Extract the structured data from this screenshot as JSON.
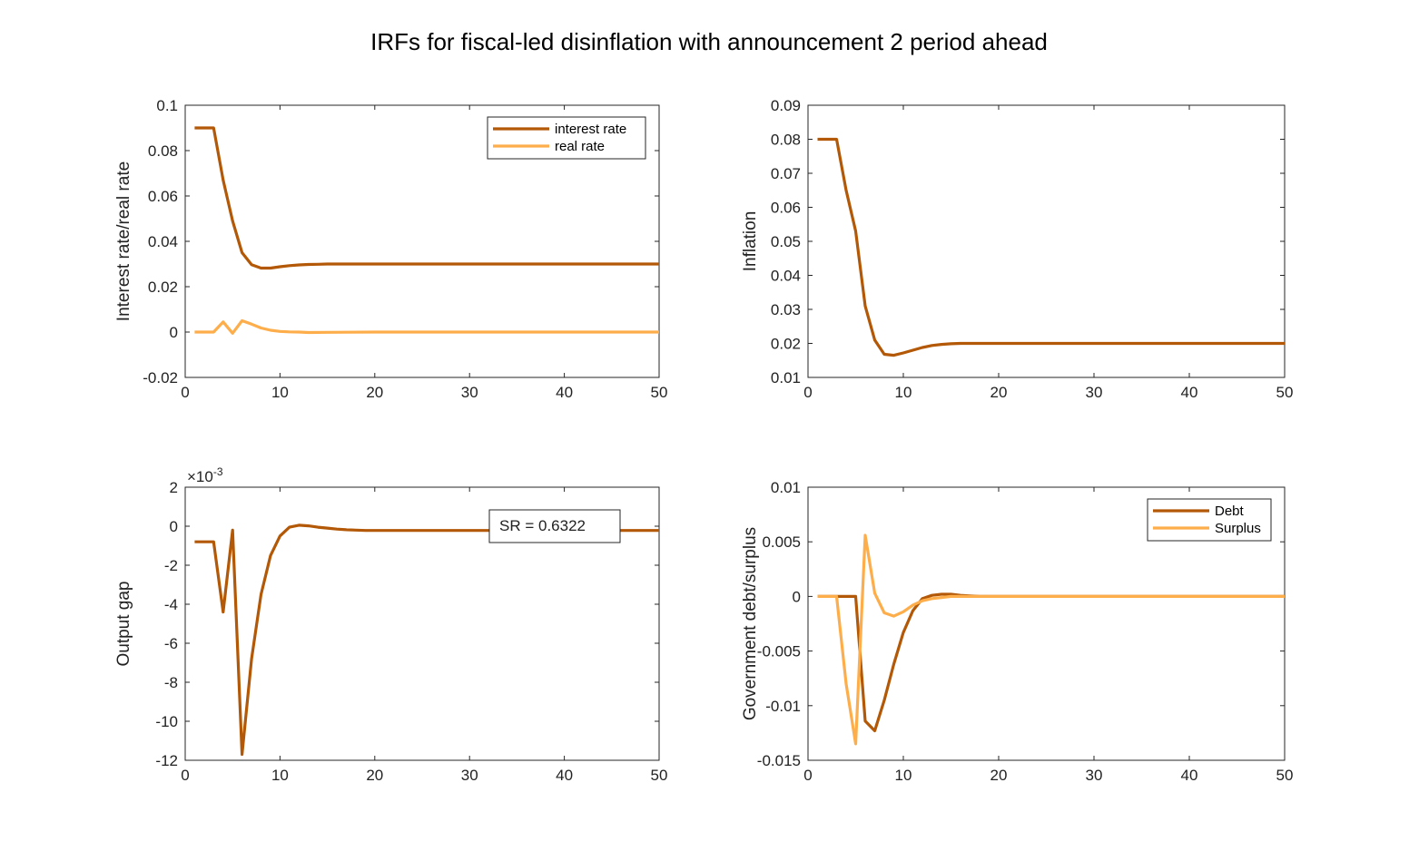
{
  "figure": {
    "title": "IRFs for fiscal-led disinflation with announcement 2 period ahead",
    "colors": {
      "dark": "#B35806",
      "light": "#FDAE4B"
    }
  },
  "chart_data": [
    {
      "type": "line",
      "ylabel": "Interest rate/real rate",
      "xlim": [
        0,
        50
      ],
      "ylim": [
        -0.02,
        0.1
      ],
      "xticks": [
        "0",
        "10",
        "20",
        "30",
        "40",
        "50"
      ],
      "yticks": [
        "-0.02",
        "0",
        "0.02",
        "0.04",
        "0.06",
        "0.08",
        "0.1"
      ],
      "legend": "top-right",
      "series": [
        {
          "name": "interest rate",
          "color": "dark",
          "x": [
            1,
            2,
            3,
            4,
            5,
            6,
            7,
            8,
            9,
            10,
            11,
            12,
            13,
            14,
            15,
            20,
            30,
            40,
            50
          ],
          "y": [
            0.09,
            0.09,
            0.09,
            0.067,
            0.049,
            0.035,
            0.0297,
            0.0282,
            0.0282,
            0.0288,
            0.0293,
            0.0296,
            0.0298,
            0.0299,
            0.03,
            0.03,
            0.03,
            0.03,
            0.03
          ]
        },
        {
          "name": "real rate",
          "color": "light",
          "x": [
            1,
            2,
            3,
            4,
            5,
            6,
            7,
            8,
            9,
            10,
            11,
            12,
            13,
            15,
            20,
            30,
            40,
            50
          ],
          "y": [
            0,
            0,
            0,
            0.0045,
            -0.0005,
            0.005,
            0.0035,
            0.0018,
            0.0008,
            0.0003,
            0.0001,
            0,
            -0.0002,
            -0.0001,
            0,
            0,
            0,
            0
          ]
        }
      ]
    },
    {
      "type": "line",
      "ylabel": "Inflation",
      "xlim": [
        0,
        50
      ],
      "ylim": [
        0.01,
        0.09
      ],
      "xticks": [
        "0",
        "10",
        "20",
        "30",
        "40",
        "50"
      ],
      "yticks": [
        "0.01",
        "0.02",
        "0.03",
        "0.04",
        "0.05",
        "0.06",
        "0.07",
        "0.08",
        "0.09"
      ],
      "series": [
        {
          "color": "dark",
          "x": [
            1,
            2,
            3,
            4,
            5,
            6,
            7,
            8,
            9,
            10,
            11,
            12,
            13,
            14,
            15,
            16,
            20,
            30,
            40,
            50
          ],
          "y": [
            0.08,
            0.08,
            0.08,
            0.065,
            0.053,
            0.031,
            0.021,
            0.0168,
            0.0165,
            0.0172,
            0.018,
            0.0188,
            0.0194,
            0.0197,
            0.0199,
            0.02,
            0.02,
            0.02,
            0.02,
            0.02
          ]
        }
      ]
    },
    {
      "type": "line",
      "ylabel": "Output gap",
      "exponent": "×10",
      "exponent_power": "-3",
      "xlim": [
        0,
        50
      ],
      "ylim": [
        -12,
        2
      ],
      "xticks": [
        "0",
        "10",
        "20",
        "30",
        "40",
        "50"
      ],
      "yticks": [
        "-12",
        "-10",
        "-8",
        "-6",
        "-4",
        "-2",
        "0",
        "2"
      ],
      "annotation": "SR = 0.6322",
      "series": [
        {
          "color": "dark",
          "x": [
            1,
            2,
            3,
            4,
            5,
            6,
            7,
            8,
            9,
            10,
            11,
            12,
            13,
            14,
            15,
            16,
            17,
            18,
            19,
            20,
            30,
            40,
            50
          ],
          "y": [
            -0.8,
            -0.8,
            -0.8,
            -4.4,
            -0.2,
            -11.7,
            -6.8,
            -3.5,
            -1.5,
            -0.5,
            -0.05,
            0.05,
            0.02,
            -0.05,
            -0.1,
            -0.15,
            -0.18,
            -0.2,
            -0.22,
            -0.22,
            -0.22,
            -0.22,
            -0.22
          ]
        }
      ]
    },
    {
      "type": "line",
      "ylabel": "Government debt/surplus",
      "xlim": [
        0,
        50
      ],
      "ylim": [
        -0.015,
        0.01
      ],
      "xticks": [
        "0",
        "10",
        "20",
        "30",
        "40",
        "50"
      ],
      "yticks": [
        "-0.015",
        "-0.01",
        "-0.005",
        "0",
        "0.005",
        "0.01"
      ],
      "legend": "top-right",
      "series": [
        {
          "name": "Debt",
          "color": "dark",
          "x": [
            1,
            2,
            3,
            4,
            5,
            6,
            7,
            8,
            9,
            10,
            11,
            12,
            13,
            14,
            15,
            16,
            17,
            18,
            20,
            30,
            40,
            50
          ],
          "y": [
            0,
            0,
            0,
            0,
            0,
            -0.0114,
            -0.0123,
            -0.0095,
            -0.0062,
            -0.0033,
            -0.0013,
            -0.0002,
            0.0001,
            0.0002,
            0.0002,
            0.0001,
            5e-05,
            0,
            0,
            0,
            0,
            0
          ]
        },
        {
          "name": "Surplus",
          "color": "light",
          "x": [
            1,
            2,
            3,
            4,
            5,
            6,
            7,
            8,
            9,
            10,
            11,
            12,
            13,
            14,
            15,
            20,
            30,
            40,
            50
          ],
          "y": [
            0,
            0,
            0,
            -0.008,
            -0.0135,
            0.0056,
            0.0003,
            -0.0015,
            -0.0018,
            -0.0014,
            -0.0008,
            -0.0004,
            -0.0002,
            -0.0001,
            0,
            0,
            0,
            0,
            0
          ]
        }
      ]
    }
  ]
}
